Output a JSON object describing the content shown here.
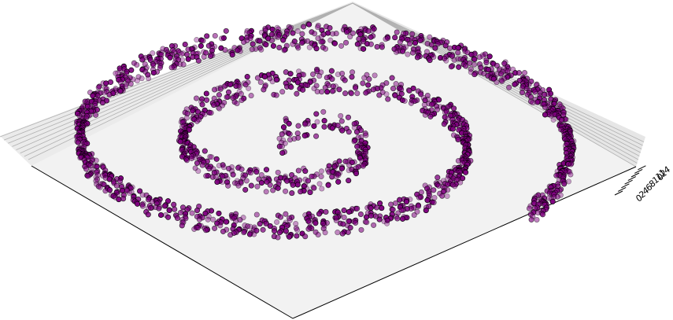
{
  "chart_data": {
    "type": "scatter",
    "projection": "3d",
    "title": "",
    "xlabel": "",
    "ylabel": "",
    "zlabel": "",
    "grid": true,
    "point_count": 2000,
    "z_ticks": [
      "0",
      "2",
      "4",
      "6",
      "8",
      "10",
      "12",
      "14"
    ],
    "zlim": [
      0,
      14
    ],
    "colors": {
      "point_fill": "#800080",
      "point_edge": "#000000",
      "pane": "#f2f2f2",
      "gridline": "#b0b0b0"
    }
  }
}
